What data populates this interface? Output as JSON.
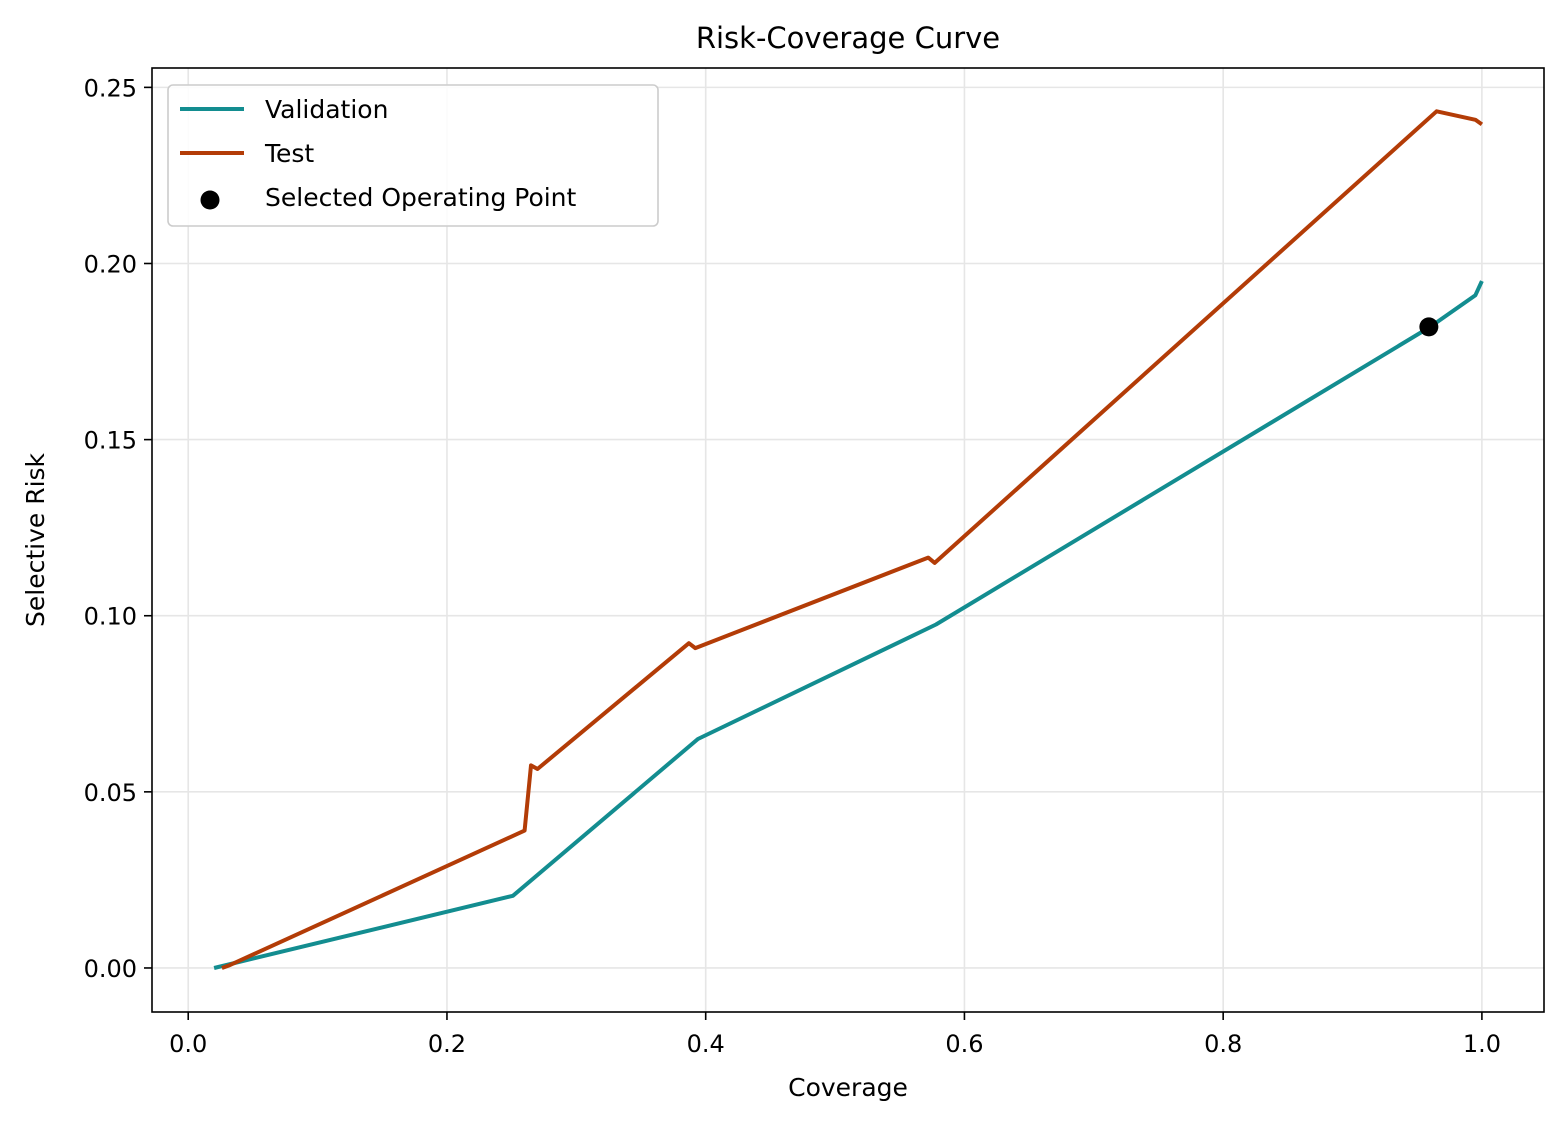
{
  "chart_data": {
    "type": "line",
    "title": "Risk-Coverage Curve",
    "xlabel": "Coverage",
    "ylabel": "Selective Risk",
    "xlim": [
      -0.028,
      1.048
    ],
    "ylim": [
      -0.0125,
      0.2555
    ],
    "xticks": [
      0.0,
      0.2,
      0.4,
      0.6,
      0.8,
      1.0
    ],
    "xtick_labels": [
      "0.0",
      "0.2",
      "0.4",
      "0.6",
      "0.8",
      "1.0"
    ],
    "yticks": [
      0.0,
      0.05,
      0.1,
      0.15,
      0.2,
      0.25
    ],
    "ytick_labels": [
      "0.00",
      "0.05",
      "0.10",
      "0.15",
      "0.20",
      "0.25"
    ],
    "grid": true,
    "legend_position": "top-left",
    "series": [
      {
        "name": "Validation",
        "color": "#138d90",
        "points": [
          [
            0.02,
            0.0
          ],
          [
            0.251,
            0.0205
          ],
          [
            0.394,
            0.065
          ],
          [
            0.578,
            0.0975
          ],
          [
            0.96,
            0.182
          ],
          [
            0.995,
            0.191
          ],
          [
            1.0,
            0.195
          ]
        ]
      },
      {
        "name": "Test",
        "color": "#b33c07",
        "points": [
          [
            0.026,
            0.0
          ],
          [
            0.032,
            0.0008
          ],
          [
            0.26,
            0.039
          ],
          [
            0.265,
            0.0575
          ],
          [
            0.27,
            0.0565
          ],
          [
            0.387,
            0.0922
          ],
          [
            0.392,
            0.0908
          ],
          [
            0.572,
            0.1165
          ],
          [
            0.577,
            0.115
          ],
          [
            0.965,
            0.2432
          ],
          [
            0.995,
            0.2408
          ],
          [
            1.0,
            0.2395
          ]
        ]
      }
    ],
    "markers": [
      {
        "name": "Selected Operating Point",
        "color": "#000000",
        "x": 0.959,
        "y": 0.182
      }
    ]
  }
}
